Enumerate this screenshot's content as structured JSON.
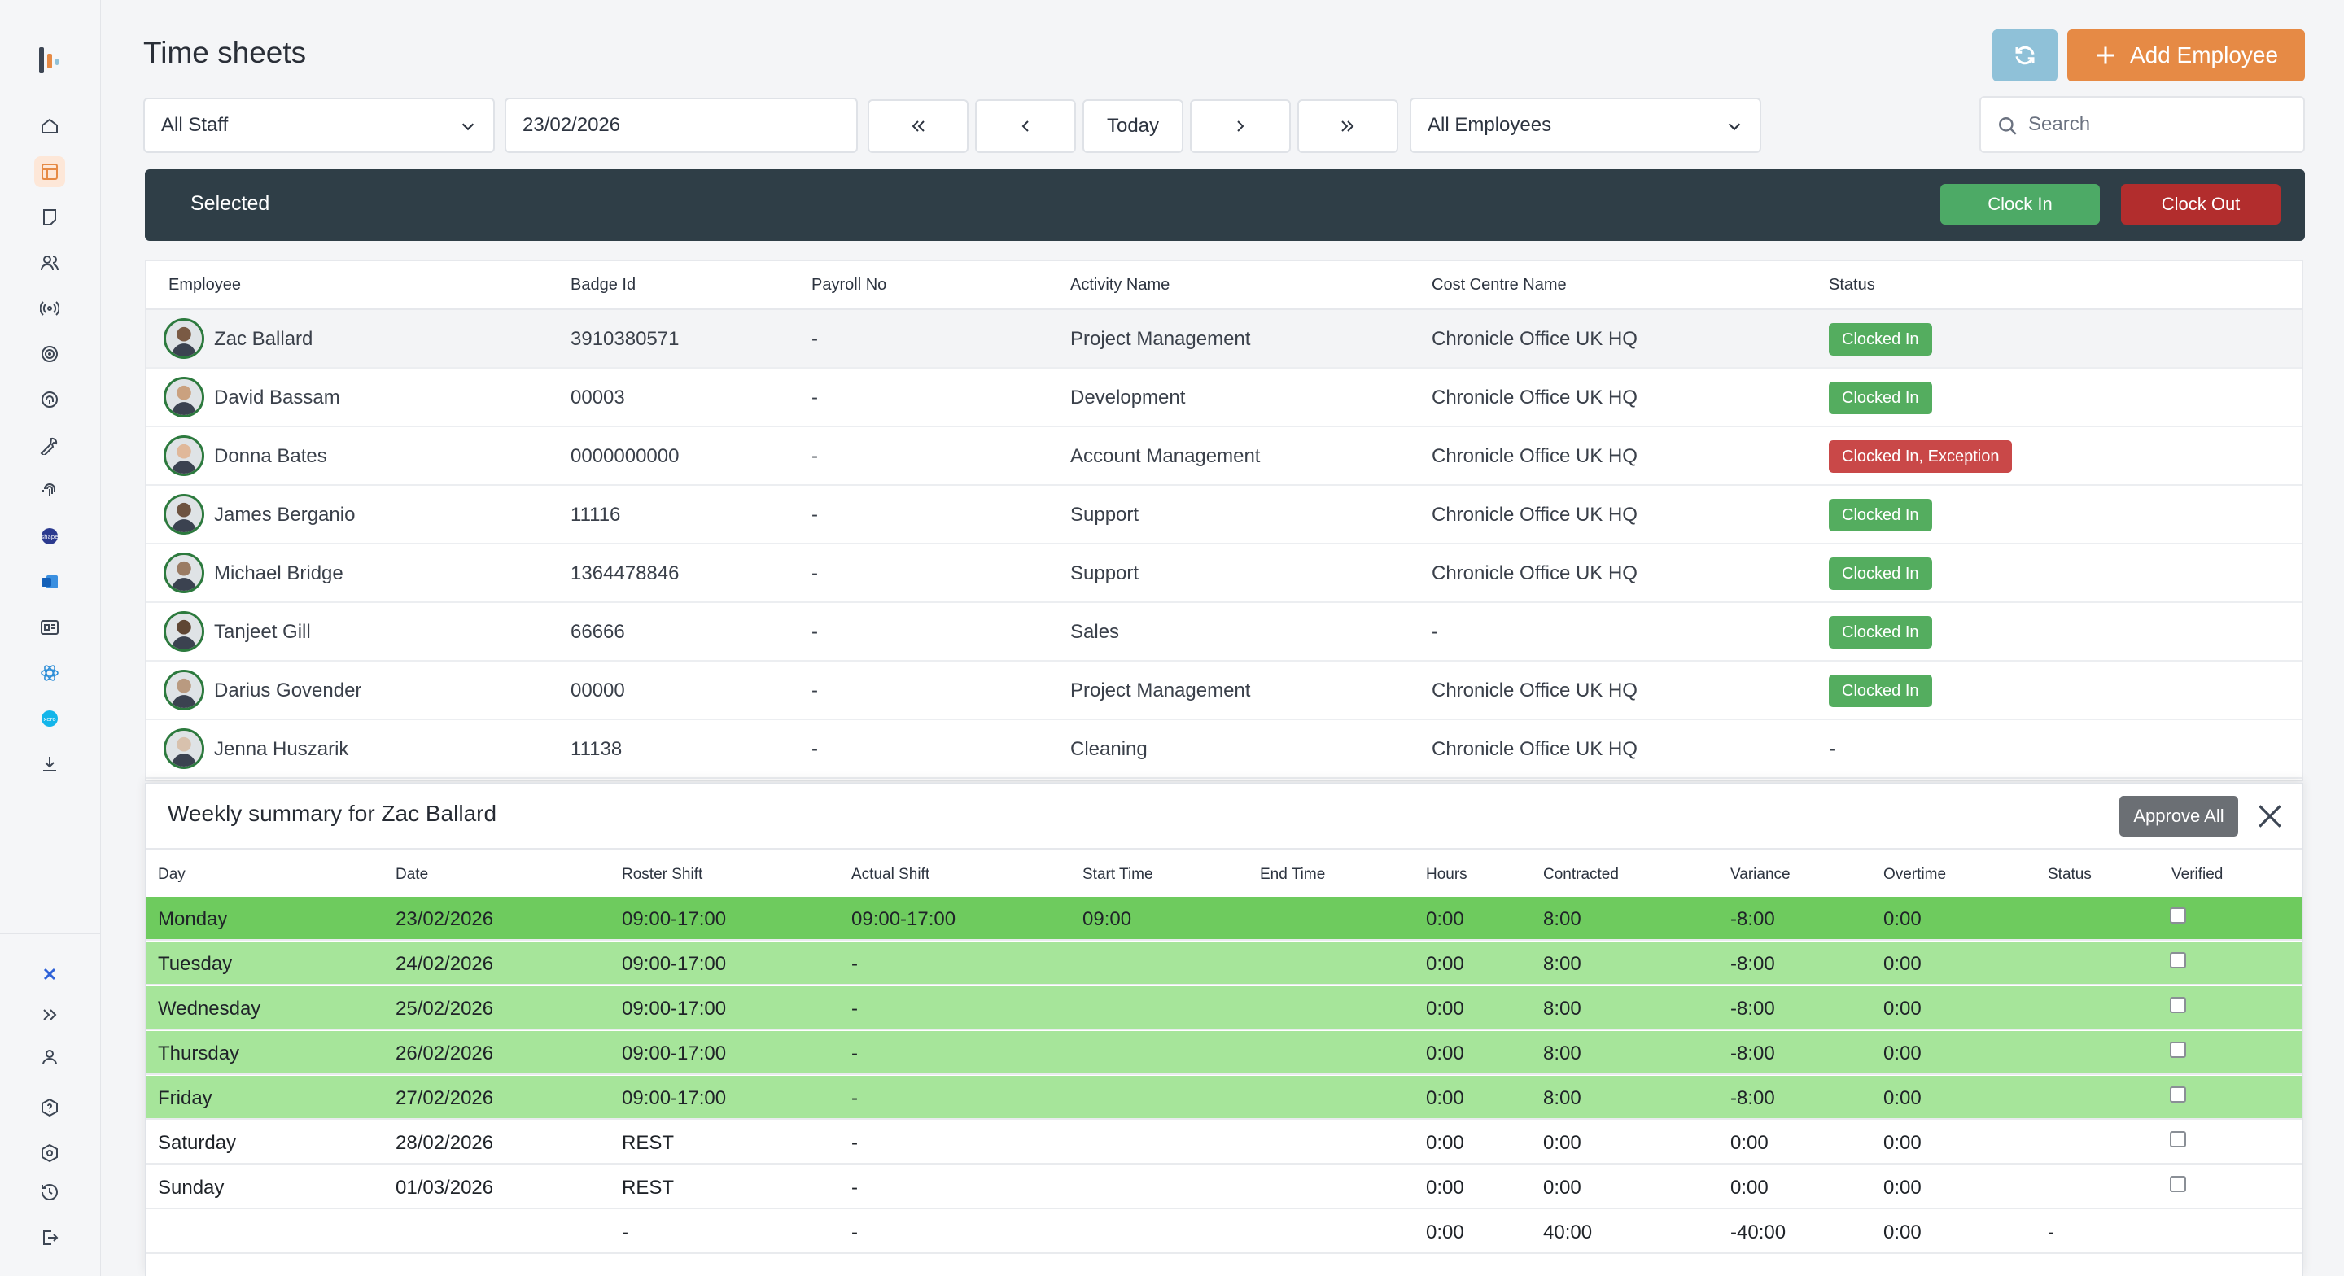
{
  "page": {
    "title": "Time sheets"
  },
  "header": {
    "add_employee_label": "Add Employee"
  },
  "filters": {
    "staff": "All Staff",
    "date": "23/02/2026",
    "today_label": "Today",
    "employees": "All Employees",
    "search_placeholder": "Search"
  },
  "selection_bar": {
    "label": "Selected",
    "clock_in": "Clock In",
    "clock_out": "Clock Out"
  },
  "employees": {
    "headers": [
      "Employee",
      "Badge Id",
      "Payroll No",
      "Activity Name",
      "Cost Centre Name",
      "Status"
    ],
    "rows": [
      {
        "name": "Zac Ballard",
        "badge": "3910380571",
        "payroll": "-",
        "activity": "Project Management",
        "cost_centre": "Chronicle Office UK HQ",
        "status": "Clocked In",
        "status_color": "#54ad5f"
      },
      {
        "name": "David Bassam",
        "badge": "00003",
        "payroll": "-",
        "activity": "Development",
        "cost_centre": "Chronicle Office UK HQ",
        "status": "Clocked In",
        "status_color": "#54ad5f"
      },
      {
        "name": "Donna Bates",
        "badge": "0000000000",
        "payroll": "-",
        "activity": "Account Management",
        "cost_centre": "Chronicle Office UK HQ",
        "status": "Clocked In, Exception",
        "status_color": "#c94848"
      },
      {
        "name": "James Berganio",
        "badge": "11116",
        "payroll": "-",
        "activity": "Support",
        "cost_centre": "Chronicle Office UK HQ",
        "status": "Clocked In",
        "status_color": "#54ad5f"
      },
      {
        "name": "Michael Bridge",
        "badge": "1364478846",
        "payroll": "-",
        "activity": "Support",
        "cost_centre": "Chronicle Office UK HQ",
        "status": "Clocked In",
        "status_color": "#54ad5f"
      },
      {
        "name": "Tanjeet Gill",
        "badge": "66666",
        "payroll": "-",
        "activity": "Sales",
        "cost_centre": "-",
        "status": "Clocked In",
        "status_color": "#54ad5f"
      },
      {
        "name": "Darius Govender",
        "badge": "00000",
        "payroll": "-",
        "activity": "Project Management",
        "cost_centre": "Chronicle Office UK HQ",
        "status": "Clocked In",
        "status_color": "#54ad5f"
      },
      {
        "name": "Jenna Huszarik",
        "badge": "11138",
        "payroll": "-",
        "activity": "Cleaning",
        "cost_centre": "Chronicle Office UK HQ",
        "status": "-",
        "status_color": ""
      }
    ]
  },
  "weekly": {
    "title": "Weekly summary for Zac Ballard",
    "approve_all": "Approve All",
    "headers": [
      "Day",
      "Date",
      "Roster Shift",
      "Actual Shift",
      "Start Time",
      "End Time",
      "Hours",
      "Contracted",
      "Variance",
      "Overtime",
      "Status",
      "Verified"
    ],
    "rows": [
      {
        "day": "Monday",
        "date": "23/02/2026",
        "roster": "09:00-17:00",
        "actual": "09:00-17:00",
        "start": "09:00",
        "end": "",
        "hours": "0:00",
        "contracted": "8:00",
        "variance": "-8:00",
        "overtime": "0:00",
        "status": "",
        "verified": false,
        "tone": "dark"
      },
      {
        "day": "Tuesday",
        "date": "24/02/2026",
        "roster": "09:00-17:00",
        "actual": "-",
        "start": "",
        "end": "",
        "hours": "0:00",
        "contracted": "8:00",
        "variance": "-8:00",
        "overtime": "0:00",
        "status": "",
        "verified": false,
        "tone": "light"
      },
      {
        "day": "Wednesday",
        "date": "25/02/2026",
        "roster": "09:00-17:00",
        "actual": "-",
        "start": "",
        "end": "",
        "hours": "0:00",
        "contracted": "8:00",
        "variance": "-8:00",
        "overtime": "0:00",
        "status": "",
        "verified": false,
        "tone": "light"
      },
      {
        "day": "Thursday",
        "date": "26/02/2026",
        "roster": "09:00-17:00",
        "actual": "-",
        "start": "",
        "end": "",
        "hours": "0:00",
        "contracted": "8:00",
        "variance": "-8:00",
        "overtime": "0:00",
        "status": "",
        "verified": false,
        "tone": "light"
      },
      {
        "day": "Friday",
        "date": "27/02/2026",
        "roster": "09:00-17:00",
        "actual": "-",
        "start": "",
        "end": "",
        "hours": "0:00",
        "contracted": "8:00",
        "variance": "-8:00",
        "overtime": "0:00",
        "status": "",
        "verified": false,
        "tone": "light"
      },
      {
        "day": "Saturday",
        "date": "28/02/2026",
        "roster": "REST",
        "actual": "-",
        "start": "",
        "end": "",
        "hours": "0:00",
        "contracted": "0:00",
        "variance": "0:00",
        "overtime": "0:00",
        "status": "",
        "verified": false,
        "tone": "white"
      },
      {
        "day": "Sunday",
        "date": "01/03/2026",
        "roster": "REST",
        "actual": "-",
        "start": "",
        "end": "",
        "hours": "0:00",
        "contracted": "0:00",
        "variance": "0:00",
        "overtime": "0:00",
        "status": "",
        "verified": false,
        "tone": "white"
      }
    ],
    "totals": {
      "roster": "-",
      "actual": "-",
      "hours": "0:00",
      "contracted": "40:00",
      "variance": "-40:00",
      "overtime": "0:00",
      "status": "-"
    }
  },
  "sidebar": {
    "icons": [
      "home-icon",
      "timesheet-icon",
      "note-icon",
      "users-icon",
      "broadcast-icon",
      "target-icon",
      "fingerprint-scan-icon",
      "wrench-icon",
      "fingerprint-icon",
      "shape-icon",
      "outlook-icon",
      "id-card-icon",
      "react-icon",
      "xero-icon",
      "download-icon"
    ],
    "bottom_icons": [
      "app-logo-icon",
      "expand-icon",
      "user-profile-icon",
      "help-icon",
      "settings-icon",
      "history-icon",
      "logout-icon"
    ]
  },
  "colors": {
    "accent": "#e68a45",
    "refresh": "#8fc1d8",
    "clock_in": "#4daa66",
    "clock_out": "#b22d2d",
    "bar": "#2f3e47"
  }
}
